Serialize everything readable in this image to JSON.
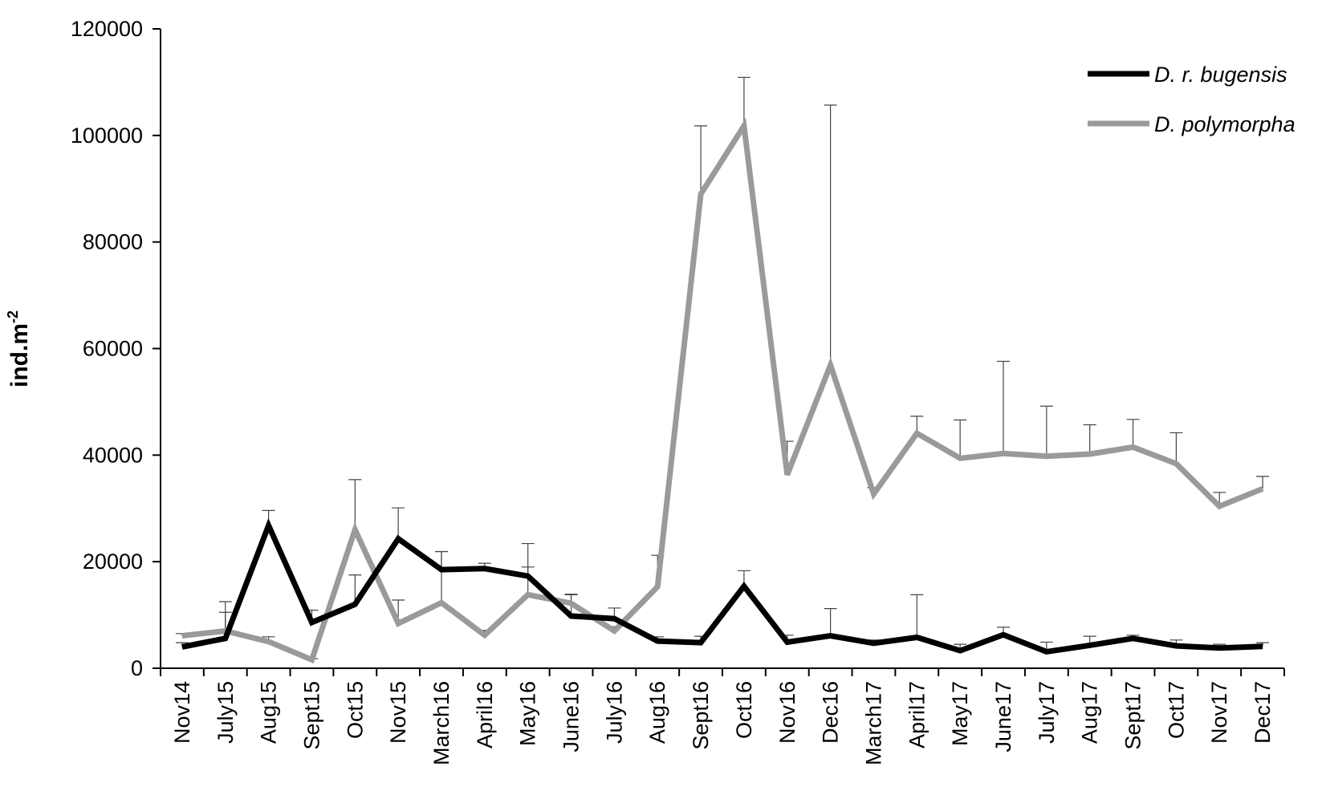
{
  "chart_data": {
    "type": "line",
    "title": "",
    "xlabel": "",
    "ylabel": "ind.m",
    "ylabel_superscript": "-2",
    "ylim": [
      0,
      120000
    ],
    "y_ticks": [
      "0",
      "20000",
      "40000",
      "60000",
      "80000",
      "100000",
      "120000"
    ],
    "y_tick_values": [
      0,
      20000,
      40000,
      60000,
      80000,
      100000,
      120000
    ],
    "grid": false,
    "legend": "top-right",
    "x": [
      "Nov14",
      "July15",
      "Aug15",
      "Sept15",
      "Oct15",
      "Nov15",
      "March16",
      "April16",
      "May16",
      "June16",
      "July16",
      "Aug16",
      "Sept16",
      "Oct16",
      "Nov16",
      "Dec16",
      "March17",
      "April17",
      "May17",
      "June17",
      "July17",
      "Aug17",
      "Sept17",
      "Oct17",
      "Nov17",
      "Dec17"
    ],
    "series": [
      {
        "name": "D. r. bugensis",
        "color": "#000000",
        "values": [
          4000,
          5600,
          26800,
          8600,
          12000,
          24300,
          18500,
          18700,
          17300,
          9800,
          9300,
          5100,
          4800,
          15400,
          4900,
          6100,
          4700,
          5800,
          3300,
          6300,
          3100,
          4300,
          5600,
          4200,
          3800,
          4100
        ],
        "errors": [
          800,
          6900,
          2800,
          2300,
          5500,
          5800,
          3400,
          1000,
          1700,
          4000,
          2000,
          800,
          1200,
          2900,
          1300,
          5100,
          600,
          8000,
          1200,
          1400,
          1800,
          1700,
          600,
          1100,
          700,
          700
        ]
      },
      {
        "name": "D. polymorpha",
        "color": "#9a9a9a",
        "values": [
          6100,
          7000,
          5000,
          1600,
          26000,
          8400,
          12300,
          6200,
          13800,
          12200,
          7000,
          15300,
          89000,
          101800,
          36300,
          56900,
          32700,
          44100,
          39400,
          40300,
          39800,
          40200,
          41500,
          38400,
          30400,
          33700
        ],
        "errors": [
          400,
          3500,
          900,
          200,
          9400,
          4400,
          9600,
          900,
          9600,
          1700,
          800,
          5900,
          12800,
          9100,
          6300,
          48800,
          1200,
          3200,
          7200,
          17300,
          9400,
          5500,
          5200,
          5800,
          2600,
          2300
        ]
      }
    ]
  }
}
